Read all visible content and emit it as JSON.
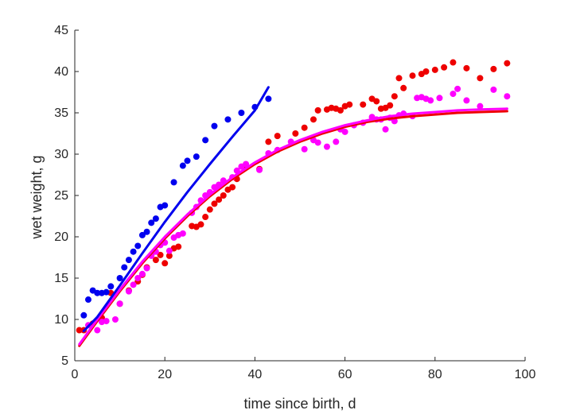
{
  "chart_data": {
    "type": "scatter",
    "title": "",
    "xlabel": "time since birth, d",
    "ylabel": "wet weight, g",
    "xlim": [
      0,
      100
    ],
    "ylim": [
      5,
      45
    ],
    "xticks": [
      0,
      20,
      40,
      60,
      80,
      100
    ],
    "yticks": [
      5,
      10,
      15,
      20,
      25,
      30,
      35,
      40,
      45
    ],
    "grid": false,
    "legend": "none",
    "series": [
      {
        "color": "#0000ee",
        "points": [
          [
            2,
            10.5
          ],
          [
            3,
            12.4
          ],
          [
            4,
            13.5
          ],
          [
            5,
            13.2
          ],
          [
            6,
            13.2
          ],
          [
            7,
            13.3
          ],
          [
            8,
            14
          ],
          [
            10,
            15
          ],
          [
            11,
            16.3
          ],
          [
            12,
            17.2
          ],
          [
            13,
            18.2
          ],
          [
            14,
            18.9
          ],
          [
            15,
            20.2
          ],
          [
            16,
            20.6
          ],
          [
            17,
            21.7
          ],
          [
            18,
            22.2
          ],
          [
            19,
            23.6
          ],
          [
            20,
            23.8
          ],
          [
            22,
            26.6
          ],
          [
            24,
            28.6
          ],
          [
            25,
            29.2
          ],
          [
            27,
            29.7
          ],
          [
            29,
            31.7
          ],
          [
            31,
            33.4
          ],
          [
            34,
            34.2
          ],
          [
            37,
            35.0
          ],
          [
            40,
            35.7
          ],
          [
            43,
            36.7
          ]
        ],
        "fit": [
          [
            2,
            8.6
          ],
          [
            5,
            10.3
          ],
          [
            10,
            14.1
          ],
          [
            15,
            18.0
          ],
          [
            20,
            21.8
          ],
          [
            25,
            25.4
          ],
          [
            30,
            28.8
          ],
          [
            35,
            32.1
          ],
          [
            40,
            35.3
          ],
          [
            43,
            38.1
          ]
        ]
      },
      {
        "color": "#ee0000",
        "points": [
          [
            1,
            8.7
          ],
          [
            2,
            8.7
          ],
          [
            4,
            9.5
          ],
          [
            6,
            10.2
          ],
          [
            8,
            13.2
          ],
          [
            10,
            11.9
          ],
          [
            12,
            13.5
          ],
          [
            14,
            14.6
          ],
          [
            15,
            15.4
          ],
          [
            16,
            16.3
          ],
          [
            17,
            17.8
          ],
          [
            18,
            17.2
          ],
          [
            19,
            17.8
          ],
          [
            20,
            16.8
          ],
          [
            21,
            17.7
          ],
          [
            22,
            18.6
          ],
          [
            23,
            18.8
          ],
          [
            26,
            21.3
          ],
          [
            27,
            21.2
          ],
          [
            28,
            21.5
          ],
          [
            29,
            22.4
          ],
          [
            30,
            23.3
          ],
          [
            31,
            24
          ],
          [
            32,
            24.5
          ],
          [
            33,
            25
          ],
          [
            34,
            25.7
          ],
          [
            35,
            26
          ],
          [
            36,
            27
          ],
          [
            38,
            28.4
          ],
          [
            41,
            28.2
          ],
          [
            43,
            31.5
          ],
          [
            45,
            32.2
          ],
          [
            49,
            32.5
          ],
          [
            51,
            33.2
          ],
          [
            53,
            34.2
          ],
          [
            54,
            35.3
          ],
          [
            56,
            35.4
          ],
          [
            57,
            35.6
          ],
          [
            58,
            35.5
          ],
          [
            59,
            35.3
          ],
          [
            60,
            35.8
          ],
          [
            61,
            36
          ],
          [
            64,
            36
          ],
          [
            66,
            36.7
          ],
          [
            67,
            36.4
          ],
          [
            68,
            35.5
          ],
          [
            69,
            35.6
          ],
          [
            70,
            35.9
          ],
          [
            71,
            37
          ],
          [
            72,
            39.2
          ],
          [
            73,
            38
          ],
          [
            75,
            39.5
          ],
          [
            77,
            39.7
          ],
          [
            78,
            40
          ],
          [
            80,
            40.2
          ],
          [
            82,
            40.5
          ],
          [
            84,
            41.1
          ],
          [
            87,
            40.4
          ],
          [
            90,
            39.2
          ],
          [
            93,
            40.3
          ],
          [
            96,
            41
          ]
        ],
        "fit": [
          [
            1,
            6.8
          ],
          [
            5,
            9.8
          ],
          [
            10,
            13.4
          ],
          [
            15,
            16.8
          ],
          [
            20,
            19.8
          ],
          [
            25,
            22.5
          ],
          [
            30,
            24.9
          ],
          [
            35,
            27.0
          ],
          [
            40,
            28.8
          ],
          [
            45,
            30.3
          ],
          [
            50,
            31.5
          ],
          [
            55,
            32.5
          ],
          [
            60,
            33.3
          ],
          [
            65,
            33.9
          ],
          [
            70,
            34.3
          ],
          [
            75,
            34.6
          ],
          [
            80,
            34.8
          ],
          [
            85,
            35.0
          ],
          [
            90,
            35.1
          ],
          [
            96,
            35.2
          ]
        ]
      },
      {
        "color": "#ff00ff",
        "points": [
          [
            3,
            9.3
          ],
          [
            5,
            8.7
          ],
          [
            6,
            9.7
          ],
          [
            7,
            9.8
          ],
          [
            9,
            10
          ],
          [
            10,
            11.9
          ],
          [
            12,
            13.4
          ],
          [
            13,
            14.2
          ],
          [
            14,
            15
          ],
          [
            15,
            15.5
          ],
          [
            16,
            16.2
          ],
          [
            17,
            17.7
          ],
          [
            18,
            18.2
          ],
          [
            19,
            19
          ],
          [
            20,
            19.3
          ],
          [
            21,
            18.3
          ],
          [
            22,
            19.9
          ],
          [
            23,
            20.2
          ],
          [
            24,
            20.4
          ],
          [
            26,
            22.9
          ],
          [
            27,
            23.6
          ],
          [
            28,
            24.4
          ],
          [
            29,
            25
          ],
          [
            30,
            25.4
          ],
          [
            31,
            26
          ],
          [
            32,
            26.3
          ],
          [
            33,
            26.8
          ],
          [
            35,
            27.2
          ],
          [
            36,
            28
          ],
          [
            37,
            28.5
          ],
          [
            38,
            28.8
          ],
          [
            41,
            28.1
          ],
          [
            43,
            30.1
          ],
          [
            45,
            30.5
          ],
          [
            48,
            31.5
          ],
          [
            51,
            30.6
          ],
          [
            53,
            31.7
          ],
          [
            54,
            31.4
          ],
          [
            56,
            30.9
          ],
          [
            58,
            31.5
          ],
          [
            59,
            33
          ],
          [
            60,
            32.7
          ],
          [
            62,
            33.5
          ],
          [
            64,
            33.8
          ],
          [
            66,
            34.5
          ],
          [
            67,
            34.2
          ],
          [
            68,
            34.2
          ],
          [
            69,
            33
          ],
          [
            70,
            34.4
          ],
          [
            71,
            34
          ],
          [
            72,
            34.7
          ],
          [
            73,
            34.9
          ],
          [
            75,
            34.6
          ],
          [
            76,
            36.8
          ],
          [
            77,
            36.9
          ],
          [
            78,
            36.7
          ],
          [
            79,
            36.5
          ],
          [
            81,
            36.8
          ],
          [
            84,
            37.3
          ],
          [
            85,
            37.9
          ],
          [
            87,
            36.5
          ],
          [
            90,
            35.8
          ],
          [
            93,
            37.8
          ],
          [
            96,
            37
          ]
        ],
        "fit": [
          [
            1,
            7.0
          ],
          [
            5,
            10.0
          ],
          [
            10,
            13.6
          ],
          [
            15,
            17.0
          ],
          [
            20,
            20.0
          ],
          [
            25,
            22.7
          ],
          [
            30,
            25.1
          ],
          [
            35,
            27.2
          ],
          [
            40,
            29.0
          ],
          [
            45,
            30.5
          ],
          [
            50,
            31.7
          ],
          [
            55,
            32.7
          ],
          [
            60,
            33.5
          ],
          [
            65,
            34.1
          ],
          [
            70,
            34.6
          ],
          [
            75,
            34.9
          ],
          [
            80,
            35.1
          ],
          [
            85,
            35.3
          ],
          [
            90,
            35.4
          ],
          [
            96,
            35.5
          ]
        ]
      }
    ]
  }
}
